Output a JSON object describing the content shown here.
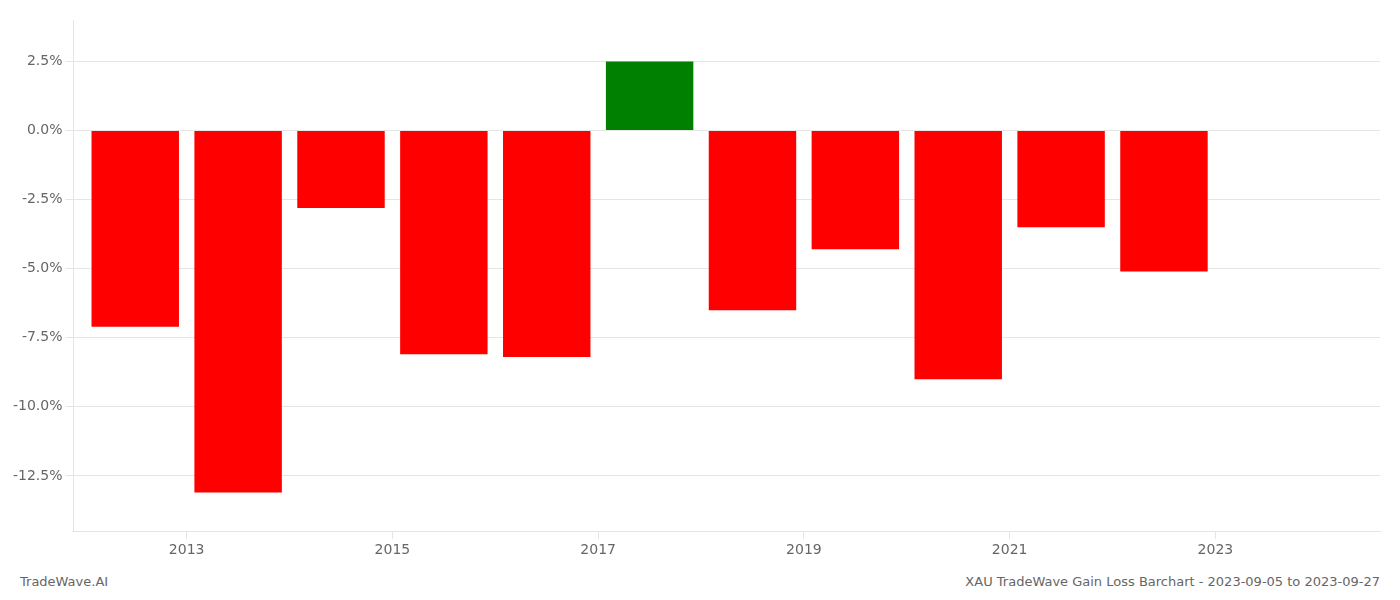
{
  "chart_data": {
    "type": "bar",
    "x": [
      2012,
      2013,
      2014,
      2015,
      2016,
      2017,
      2018,
      2019,
      2020,
      2021,
      2022,
      2023
    ],
    "values": [
      -7.1,
      -13.1,
      -2.8,
      -8.1,
      -8.2,
      2.5,
      -6.5,
      -4.3,
      -9.0,
      -3.5,
      -5.1,
      0.0
    ],
    "colors": [
      "#ff0000",
      "#ff0000",
      "#ff0000",
      "#ff0000",
      "#ff0000",
      "#008000",
      "#ff0000",
      "#ff0000",
      "#ff0000",
      "#ff0000",
      "#ff0000",
      "#ff0000"
    ],
    "xlim": [
      2011.4,
      2024.1
    ],
    "xticks": [
      {
        "value": 2012.5,
        "label": "2013"
      },
      {
        "value": 2014.5,
        "label": "2015"
      },
      {
        "value": 2016.5,
        "label": "2017"
      },
      {
        "value": 2018.5,
        "label": "2019"
      },
      {
        "value": 2020.5,
        "label": "2021"
      },
      {
        "value": 2022.5,
        "label": "2023"
      }
    ],
    "ylim": [
      -14.5,
      4.0
    ],
    "yticks": [
      {
        "value": 2.5,
        "label": "2.5%"
      },
      {
        "value": 0.0,
        "label": "0.0%"
      },
      {
        "value": -2.5,
        "label": "-2.5%"
      },
      {
        "value": -5.0,
        "label": "-5.0%"
      },
      {
        "value": -7.5,
        "label": "-7.5%"
      },
      {
        "value": -10.0,
        "label": "-10.0%"
      },
      {
        "value": -12.5,
        "label": "-12.5%"
      }
    ],
    "grid": true,
    "annotations": [
      "TradeWave.AI",
      "XAU TradeWave Gain Loss Barchart - 2023-09-05 to 2023-09-27"
    ]
  }
}
